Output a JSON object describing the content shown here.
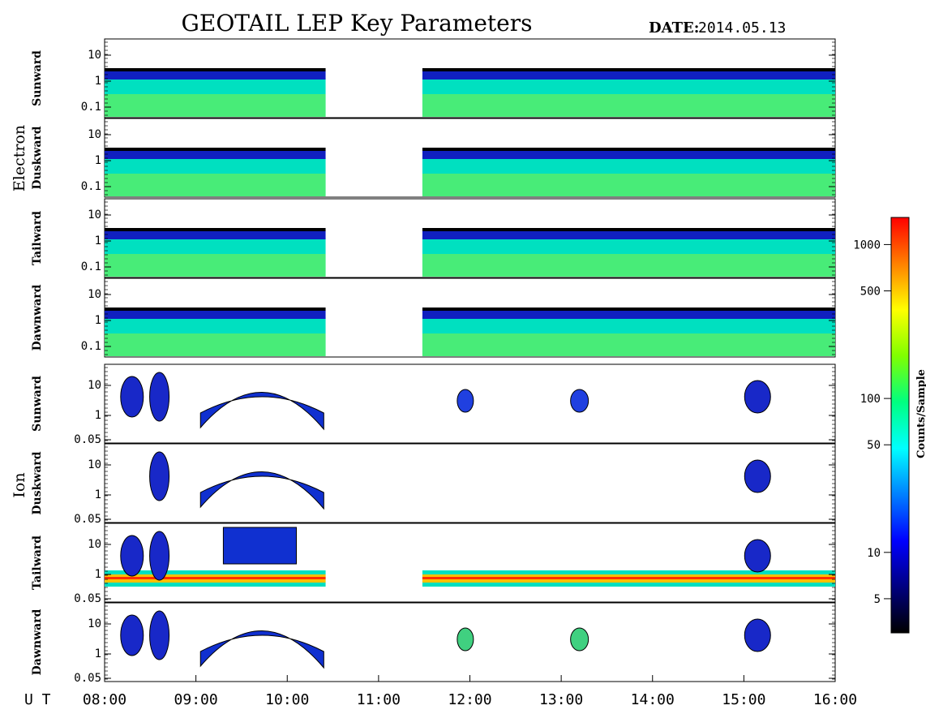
{
  "header": {
    "title": "GEOTAIL LEP Key Parameters",
    "date_label": "DATE:",
    "date_value": "2014.05.13"
  },
  "chart_data": {
    "type": "heatmap",
    "x_axis": {
      "label": "U T",
      "ticks": [
        "08:00",
        "09:00",
        "10:00",
        "11:00",
        "12:00",
        "13:00",
        "14:00",
        "15:00",
        "16:00"
      ],
      "range_hours": [
        8,
        16
      ]
    },
    "data_gap_hours": [
      10.42,
      11.48
    ],
    "groups": [
      {
        "name": "Electron",
        "panels": [
          {
            "name": "Sunward",
            "y_ticks": [
              "10",
              "1",
              "0.1"
            ]
          },
          {
            "name": "Duskward",
            "y_ticks": [
              "10",
              "1",
              "0.1"
            ]
          },
          {
            "name": "Tailward",
            "y_ticks": [
              "10",
              "1",
              "0.1"
            ]
          },
          {
            "name": "Dawnward",
            "y_ticks": [
              "10",
              "1",
              "0.1"
            ]
          }
        ]
      },
      {
        "name": "Ion",
        "panels": [
          {
            "name": "Sunward",
            "y_ticks": [
              "10",
              "1",
              "0.05"
            ]
          },
          {
            "name": "Duskward",
            "y_ticks": [
              "10",
              "1",
              "0.05"
            ]
          },
          {
            "name": "Tailward",
            "y_ticks": [
              "10",
              "1",
              "0.05"
            ]
          },
          {
            "name": "Dawnward",
            "y_ticks": [
              "10",
              "1",
              "0.05"
            ]
          }
        ]
      }
    ],
    "colorbar": {
      "label": "Counts/Sample",
      "scale": "log",
      "range": [
        3,
        1500
      ],
      "ticks": [
        {
          "value": 1000,
          "label": "1000"
        },
        {
          "value": 500,
          "label": "500"
        },
        {
          "value": 100,
          "label": "100"
        },
        {
          "value": 50,
          "label": "50"
        },
        {
          "value": 10,
          "label": "10"
        },
        {
          "value": 5,
          "label": "5"
        }
      ],
      "colors": [
        "#000000",
        "#000080",
        "#0000ff",
        "#0080ff",
        "#00ffff",
        "#00ff80",
        "#80ff00",
        "#ffff00",
        "#ff8000",
        "#ff0000"
      ]
    }
  }
}
